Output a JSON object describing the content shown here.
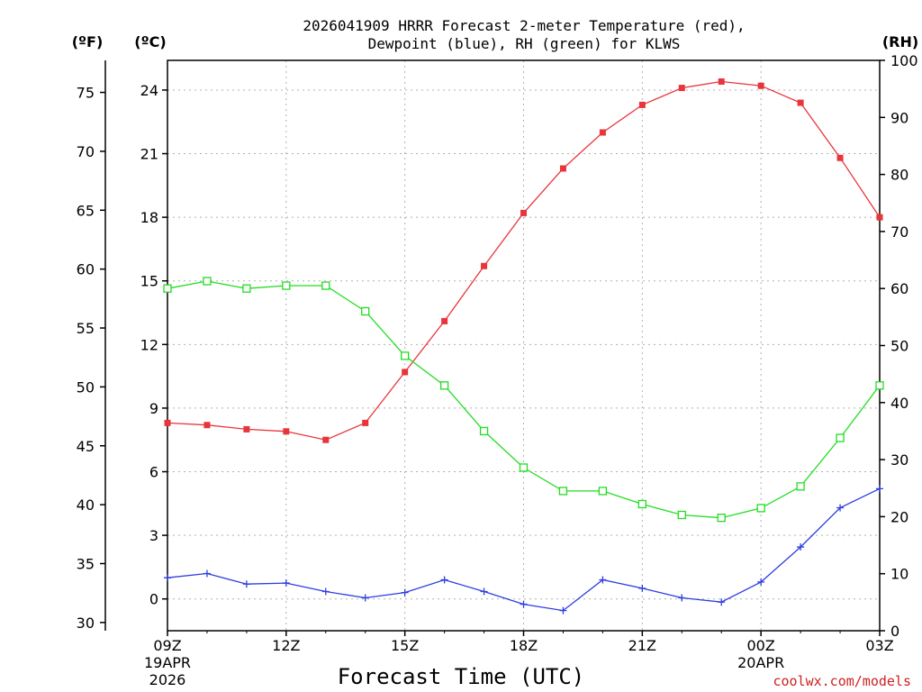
{
  "chart_data": {
    "type": "line",
    "title_line1": "2026041909 HRRR Forecast 2-meter Temperature (red),",
    "title_line2": "Dewpoint (blue), RH (green) for KLWS",
    "xlabel": "Forecast Time (UTC)",
    "credit": "coolwx.com/models",
    "units": {
      "fahrenheit": "(ºF)",
      "celsius": "(ºC)",
      "rh": "(RH)"
    },
    "x_hours": [
      0,
      1,
      2,
      3,
      4,
      5,
      6,
      7,
      8,
      9,
      10,
      11,
      12,
      13,
      14,
      15,
      16,
      17,
      18
    ],
    "x_tick_hours": [
      0,
      3,
      6,
      9,
      12,
      15,
      18
    ],
    "x_tick_labels": [
      "09Z",
      "12Z",
      "15Z",
      "18Z",
      "21Z",
      "00Z",
      "03Z"
    ],
    "x_date_labels": [
      {
        "hour": 0,
        "lines": [
          "19APR",
          "2026"
        ]
      },
      {
        "hour": 15,
        "lines": [
          "20APR"
        ]
      }
    ],
    "celsius_range": [
      -1.5,
      25.4
    ],
    "celsius_ticks": [
      0,
      3,
      6,
      9,
      12,
      15,
      18,
      21,
      24
    ],
    "fahrenheit_ticks": [
      30,
      35,
      40,
      45,
      50,
      55,
      60,
      65,
      70,
      75
    ],
    "rh_range": [
      0,
      100
    ],
    "rh_ticks": [
      0,
      10,
      20,
      30,
      40,
      50,
      60,
      70,
      80,
      90,
      100
    ],
    "series": [
      {
        "name": "2-meter Temperature",
        "axis": "celsius",
        "color": "#e8353b",
        "marker": "filled-square",
        "values": [
          8.3,
          8.2,
          8.0,
          7.9,
          7.5,
          8.3,
          10.7,
          13.1,
          15.7,
          18.2,
          20.3,
          22.0,
          23.3,
          24.1,
          24.4,
          24.2,
          23.4,
          20.8,
          18.0
        ]
      },
      {
        "name": "Dewpoint",
        "axis": "celsius",
        "color": "#2d3de0",
        "marker": "plus",
        "values": [
          1.0,
          1.2,
          0.7,
          0.75,
          0.35,
          0.05,
          0.3,
          0.9,
          0.35,
          -0.25,
          -0.55,
          0.9,
          0.5,
          0.05,
          -0.15,
          0.8,
          2.45,
          4.3,
          5.2
        ]
      },
      {
        "name": "RH",
        "axis": "rh",
        "color": "#22dd22",
        "marker": "open-square",
        "values": [
          60.0,
          61.3,
          60.0,
          60.5,
          60.5,
          56.0,
          48.2,
          43.0,
          35.0,
          28.6,
          24.5,
          24.5,
          22.2,
          20.3,
          19.8,
          21.5,
          25.3,
          33.8,
          43.0
        ]
      }
    ]
  }
}
